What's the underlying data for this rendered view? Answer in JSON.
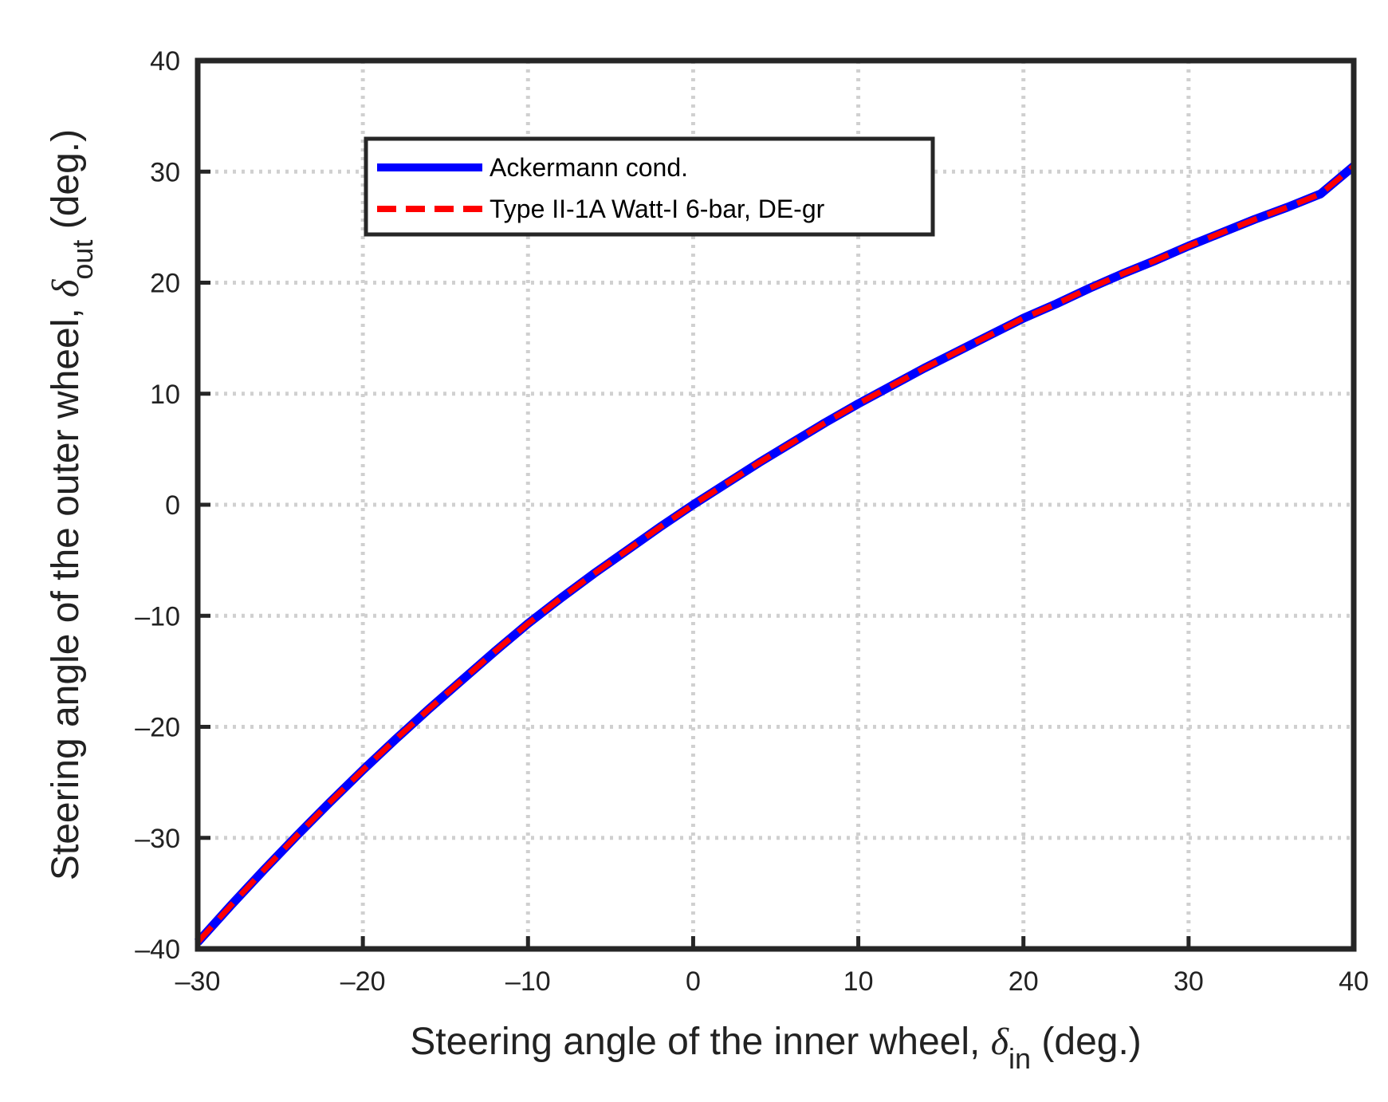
{
  "chart_data": {
    "type": "line",
    "title": "",
    "xlabel": {
      "prefix": "Steering angle of the inner wheel, ",
      "symbol": "δ",
      "subscript": "in",
      "suffix": " (deg.)"
    },
    "ylabel": {
      "prefix": "Steering angle of the outer wheel, ",
      "symbol": "δ",
      "subscript": "out",
      "suffix": " (deg.)"
    },
    "xlim": [
      -30,
      40
    ],
    "ylim": [
      -40,
      40
    ],
    "xticks": [
      -30,
      -20,
      -10,
      0,
      10,
      20,
      30,
      40
    ],
    "xtick_labels": [
      "–30",
      "–20",
      "–10",
      "0",
      "10",
      "20",
      "30",
      "40"
    ],
    "yticks": [
      -40,
      -30,
      -20,
      -10,
      0,
      10,
      20,
      30,
      40
    ],
    "ytick_labels": [
      "–40",
      "–30",
      "–20",
      "–10",
      "0",
      "10",
      "20",
      "30",
      "40"
    ],
    "grid": true,
    "legend_position": "upper-center",
    "series": [
      {
        "name": "Ackermann cond.",
        "color": "#0000ff",
        "style": "solid",
        "x": [
          -30,
          -28,
          -26,
          -24,
          -22,
          -20,
          -18,
          -16,
          -14,
          -12,
          -10,
          -8,
          -6,
          -4,
          -2,
          0,
          2,
          4,
          6,
          8,
          10,
          12,
          14,
          16,
          18,
          20,
          22,
          24,
          26,
          28,
          30,
          32,
          34,
          36,
          38,
          40
        ],
        "y": [
          -39.4,
          -36.1,
          -32.9,
          -29.8,
          -26.8,
          -23.9,
          -21.1,
          -18.4,
          -15.8,
          -13.2,
          -10.7,
          -8.4,
          -6.2,
          -4.1,
          -2.0,
          0.0,
          1.9,
          3.8,
          5.6,
          7.4,
          9.1,
          10.7,
          12.3,
          13.8,
          15.3,
          16.8,
          18.1,
          19.5,
          20.8,
          22.0,
          23.3,
          24.5,
          25.7,
          26.8,
          28.0,
          30.5
        ]
      },
      {
        "name": "Type II-1A Watt-I 6-bar, DE-gr",
        "color": "#ff0000",
        "style": "dashed",
        "x": [
          -30,
          -28,
          -26,
          -24,
          -22,
          -20,
          -18,
          -16,
          -14,
          -12,
          -10,
          -8,
          -6,
          -4,
          -2,
          0,
          2,
          4,
          6,
          8,
          10,
          12,
          14,
          16,
          18,
          20,
          22,
          24,
          26,
          28,
          30,
          32,
          34,
          36,
          38,
          40
        ],
        "y": [
          -39.4,
          -36.1,
          -32.9,
          -29.8,
          -26.8,
          -23.9,
          -21.1,
          -18.4,
          -15.8,
          -13.2,
          -10.7,
          -8.4,
          -6.2,
          -4.1,
          -2.0,
          0.0,
          1.9,
          3.8,
          5.6,
          7.4,
          9.1,
          10.7,
          12.3,
          13.8,
          15.3,
          16.8,
          18.1,
          19.5,
          20.8,
          22.0,
          23.3,
          24.5,
          25.7,
          26.8,
          28.0,
          30.5
        ]
      }
    ]
  }
}
